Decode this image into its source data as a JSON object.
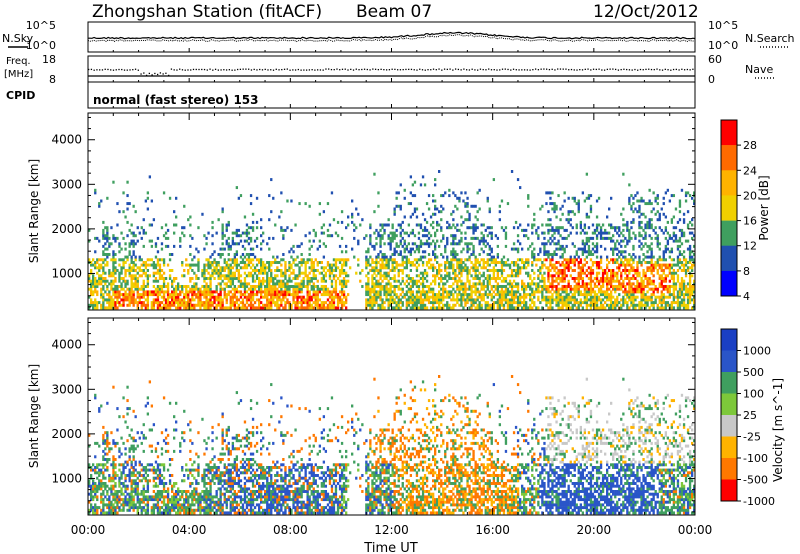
{
  "header": {
    "station": "Zhongshan Station (fitACF)",
    "beam": "Beam 07",
    "date": "12/Oct/2012"
  },
  "summary": {
    "nsky_label": "N.Sky",
    "nsearch_label": "N.Search",
    "freq_label_1": "Freq.",
    "freq_label_2": "[MHz]",
    "nave_label": "Nave",
    "cpid_label": "CPID",
    "cpid_text": "normal (fast stereo) 153",
    "noise_ticks_left": [
      "10^5",
      "10^0"
    ],
    "noise_ticks_right": [
      "10^5",
      "10^0"
    ],
    "freq_ticks": [
      "18",
      "8"
    ],
    "nave_ticks": [
      "60",
      "0"
    ]
  },
  "chart_data": [
    {
      "type": "heatmap",
      "ylabel": "Slant Range [km]",
      "yticks": [
        "1000",
        "2000",
        "3000",
        "4000"
      ],
      "ylim": [
        180,
        4600
      ],
      "colorbar": {
        "label": "Power [dB]",
        "ticks": [
          "28",
          "24",
          "20",
          "16",
          "12",
          "8",
          "4"
        ],
        "colors": [
          "#ff0000",
          "#ff6a00",
          "#ffb300",
          "#f0d000",
          "#3f9f5f",
          "#2050b0",
          "#0000ff"
        ]
      },
      "regions": [
        {
          "t0": 0.0,
          "t1": 24.0,
          "r0": 250,
          "r1": 1300,
          "level": "mid"
        },
        {
          "t0": 1.0,
          "t1": 10.5,
          "r0": 250,
          "r1": 600,
          "level": "high"
        },
        {
          "t0": 18.0,
          "t1": 20.8,
          "r0": 600,
          "r1": 1400,
          "level": "high"
        },
        {
          "t0": 20.8,
          "t1": 23.0,
          "r0": 500,
          "r1": 1200,
          "level": "high"
        }
      ]
    },
    {
      "type": "heatmap",
      "ylabel": "Slant Range [km]",
      "yticks": [
        "1000",
        "2000",
        "3000",
        "4000"
      ],
      "ylim": [
        180,
        4600
      ],
      "xlabel": "Time UT",
      "xticks": [
        "00:00",
        "04:00",
        "08:00",
        "12:00",
        "16:00",
        "20:00",
        "00:00"
      ],
      "xlim": [
        0,
        24
      ],
      "colorbar": {
        "label": "Velocity [m s^-1]",
        "ticks": [
          "1000",
          "500",
          "100",
          "25",
          "-25",
          "-100",
          "-500",
          "-1000"
        ],
        "colors": [
          "#1a3fc4",
          "#2a55c8",
          "#3f9f5f",
          "#7dc83a",
          "#c8c8c8",
          "#ffb300",
          "#ff7800",
          "#ff0000"
        ]
      }
    }
  ],
  "colors": {
    "axis": "#000000",
    "power": [
      "#0000ff",
      "#2050b0",
      "#3f9f5f",
      "#f0d000",
      "#ffb300",
      "#ff6a00",
      "#ff0000"
    ],
    "velocity": [
      "#ff0000",
      "#ff7800",
      "#ffb300",
      "#c8c8c8",
      "#7dc83a",
      "#3f9f5f",
      "#2a55c8",
      "#1a3fc4"
    ]
  }
}
